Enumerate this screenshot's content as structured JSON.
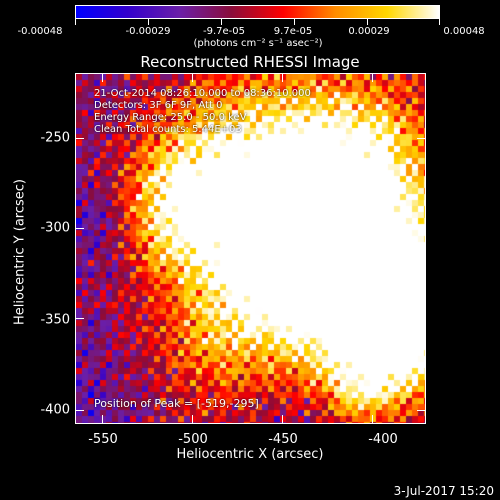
{
  "colorbar": {
    "tick_labels": [
      "-0.00048",
      "-0.00029",
      "-9.7e-05",
      "9.7e-05",
      "0.00029",
      "0.00048"
    ],
    "units": "(photons cm⁻² s⁻¹ asec⁻²)",
    "colors": [
      "#0000ff",
      "#3300cc",
      "#6b1fa8",
      "#8a0c3a",
      "#ff0000",
      "#ff8c00",
      "#ffd700",
      "#ffffff"
    ]
  },
  "title": "Reconstructed RHESSI Image",
  "annotations": {
    "time_range": "21-Oct-2014 08:26:10.000 to 08:36:10.000",
    "detectors": "Detectors: 3F 6F 9F, Att 0",
    "energy_range": "Energy Range: 25.0 - 50.0 keV",
    "clean_counts": "Clean     Total counts: 5.44E+03",
    "peak": "Position of Peak = [-519,-295]"
  },
  "axes": {
    "x_label": "Heliocentric X (arcsec)",
    "y_label": "Heliocentric Y (arcsec)",
    "x_tick_labels": [
      "-550",
      "-500",
      "-450",
      "-400"
    ],
    "y_tick_labels": [
      "-250",
      "-300",
      "-350",
      "-400"
    ]
  },
  "footer": {
    "date": "3-Jul-2017 15:20"
  },
  "image_meta": {
    "x_range": [
      -565,
      -370
    ],
    "y_range": [
      -410,
      -215
    ]
  }
}
